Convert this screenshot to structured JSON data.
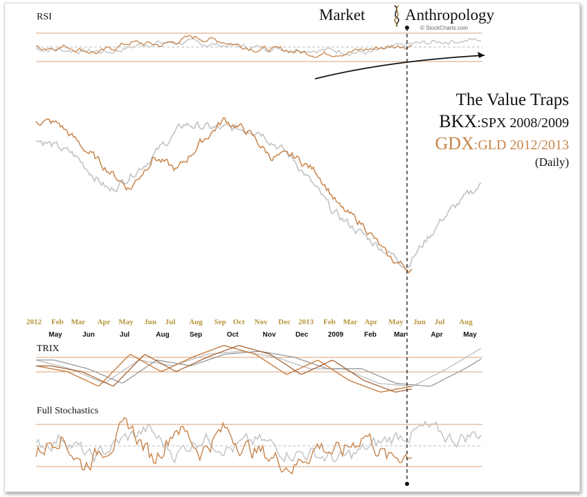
{
  "header": {
    "brand_left": "Market",
    "brand_right": "Anthropology",
    "source": "© StockCharts.com"
  },
  "titles": {
    "main": "The Value Traps",
    "line2_ticker": "BKX",
    "line2_suffix": ":SPX 2008/2009",
    "line3_ticker": "GDX",
    "line3_suffix": ":GLD 2012/2013",
    "line4": "(Daily)"
  },
  "panels": {
    "rsi_label": "RSI",
    "trix_label": "TRIX",
    "stoch_label": "Full Stochastics"
  },
  "colors": {
    "gdx": "#c8844a",
    "bkx": "#c4c4c4",
    "axis_gold": "#b8953a",
    "ref_line": "#d9a27a",
    "text": "#111111"
  },
  "chart_data": [
    {
      "type": "line",
      "name": "price-comparison",
      "series": [
        {
          "name": "GDX:GLD 2012/2013",
          "x": [
            "2012-02",
            "2012-03",
            "2012-04",
            "2012-05",
            "2012-06",
            "2012-07",
            "2012-08",
            "2012-09",
            "2012-10",
            "2012-11",
            "2012-12",
            "2013-01",
            "2013-02",
            "2013-03",
            "2013-04",
            "2013-05",
            "2013-06"
          ],
          "values": [
            100,
            98,
            88,
            79,
            70,
            84,
            78,
            90,
            100,
            95,
            84,
            84,
            77,
            61,
            54,
            40,
            35
          ]
        },
        {
          "name": "BKX:SPX 2008/2009",
          "x": [
            "2008-05",
            "2008-06",
            "2008-07",
            "2008-08",
            "2008-09",
            "2008-10",
            "2008-11",
            "2008-12",
            "2009-01",
            "2009-02",
            "2009-03",
            "2009-04",
            "2009-05"
          ],
          "values": [
            92,
            85,
            69,
            82,
            98,
            96,
            96,
            82,
            60,
            48,
            37,
            58,
            72
          ]
        }
      ],
      "x_axis_top": [
        "2012",
        "Feb",
        "Mar",
        "Apr",
        "May",
        "Jun",
        "Jul",
        "Aug",
        "Sep",
        "Oct",
        "Nov",
        "Dec",
        "2013",
        "Feb",
        "Mar",
        "Apr",
        "May",
        "Jun",
        "Jul",
        "Aug"
      ],
      "x_axis_bottom": [
        "May",
        "Jun",
        "Jul",
        "Aug",
        "Sep",
        "Oct",
        "Nov",
        "Dec",
        "2009",
        "Feb",
        "Mar",
        "Apr",
        "May"
      ]
    },
    {
      "type": "line",
      "name": "rsi",
      "series": [
        {
          "name": "GDX:GLD RSI",
          "values": [
            50,
            52,
            40,
            60,
            55,
            70,
            62,
            48,
            45,
            38,
            42,
            50,
            55
          ]
        },
        {
          "name": "BKX:SPX RSI",
          "values": [
            48,
            45,
            42,
            58,
            60,
            55,
            50,
            48,
            45,
            40,
            55,
            62,
            65
          ]
        }
      ]
    },
    {
      "type": "line",
      "name": "trix",
      "series": [
        {
          "name": "GDX:GLD TRIX",
          "values": [
            0.3,
            0.1,
            -0.4,
            0.7,
            0.1,
            0.6,
            1.0,
            0.7,
            0.0,
            0.5,
            -0.2,
            -0.6,
            -0.4
          ]
        },
        {
          "name": "BKX:SPX TRIX",
          "values": [
            0.5,
            0.2,
            -0.3,
            0.5,
            0.3,
            0.7,
            0.8,
            0.6,
            0.2,
            0.2,
            -0.3,
            -0.4,
            0.2,
            0.9
          ]
        }
      ]
    },
    {
      "type": "line",
      "name": "full-stochastics",
      "series": [
        {
          "name": "GDX:GLD Stoch",
          "values": [
            40,
            75,
            20,
            55,
            85,
            30,
            90,
            45,
            80,
            50,
            35,
            20,
            55,
            40,
            75,
            30,
            45
          ]
        },
        {
          "name": "BKX:SPX Stoch",
          "values": [
            50,
            70,
            30,
            60,
            80,
            40,
            70,
            50,
            60,
            45,
            40,
            30,
            50,
            70,
            80,
            65,
            75
          ]
        }
      ]
    }
  ]
}
